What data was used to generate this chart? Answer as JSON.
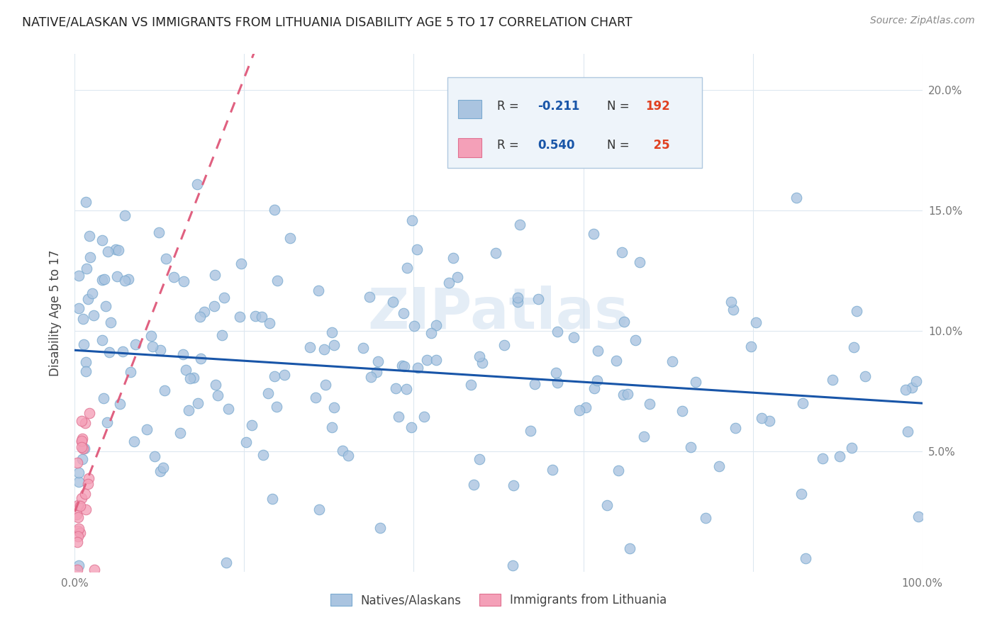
{
  "title": "NATIVE/ALASKAN VS IMMIGRANTS FROM LITHUANIA DISABILITY AGE 5 TO 17 CORRELATION CHART",
  "source": "Source: ZipAtlas.com",
  "ylabel": "Disability Age 5 to 17",
  "xlim": [
    0,
    1.0
  ],
  "ylim": [
    0,
    0.215
  ],
  "xtick_positions": [
    0.0,
    0.2,
    0.4,
    0.6,
    0.8,
    1.0
  ],
  "xticklabels": [
    "0.0%",
    "",
    "",
    "",
    "",
    "100.0%"
  ],
  "ytick_positions": [
    0.05,
    0.1,
    0.15,
    0.2
  ],
  "yticklabels": [
    "5.0%",
    "10.0%",
    "15.0%",
    "20.0%"
  ],
  "native_R": -0.211,
  "native_N": 192,
  "lithu_R": 0.54,
  "lithu_N": 25,
  "native_color": "#aac4e0",
  "native_edge_color": "#7aaad0",
  "lithu_color": "#f4a0b8",
  "lithu_edge_color": "#e07090",
  "native_line_color": "#1855a8",
  "lithu_line_color": "#e06080",
  "watermark": "ZIPatlas",
  "legend_face_color": "#eef4fa",
  "legend_edge_color": "#b0c8e0",
  "native_label": "Natives/Alaskans",
  "lithu_label": "Immigrants from Lithuania"
}
